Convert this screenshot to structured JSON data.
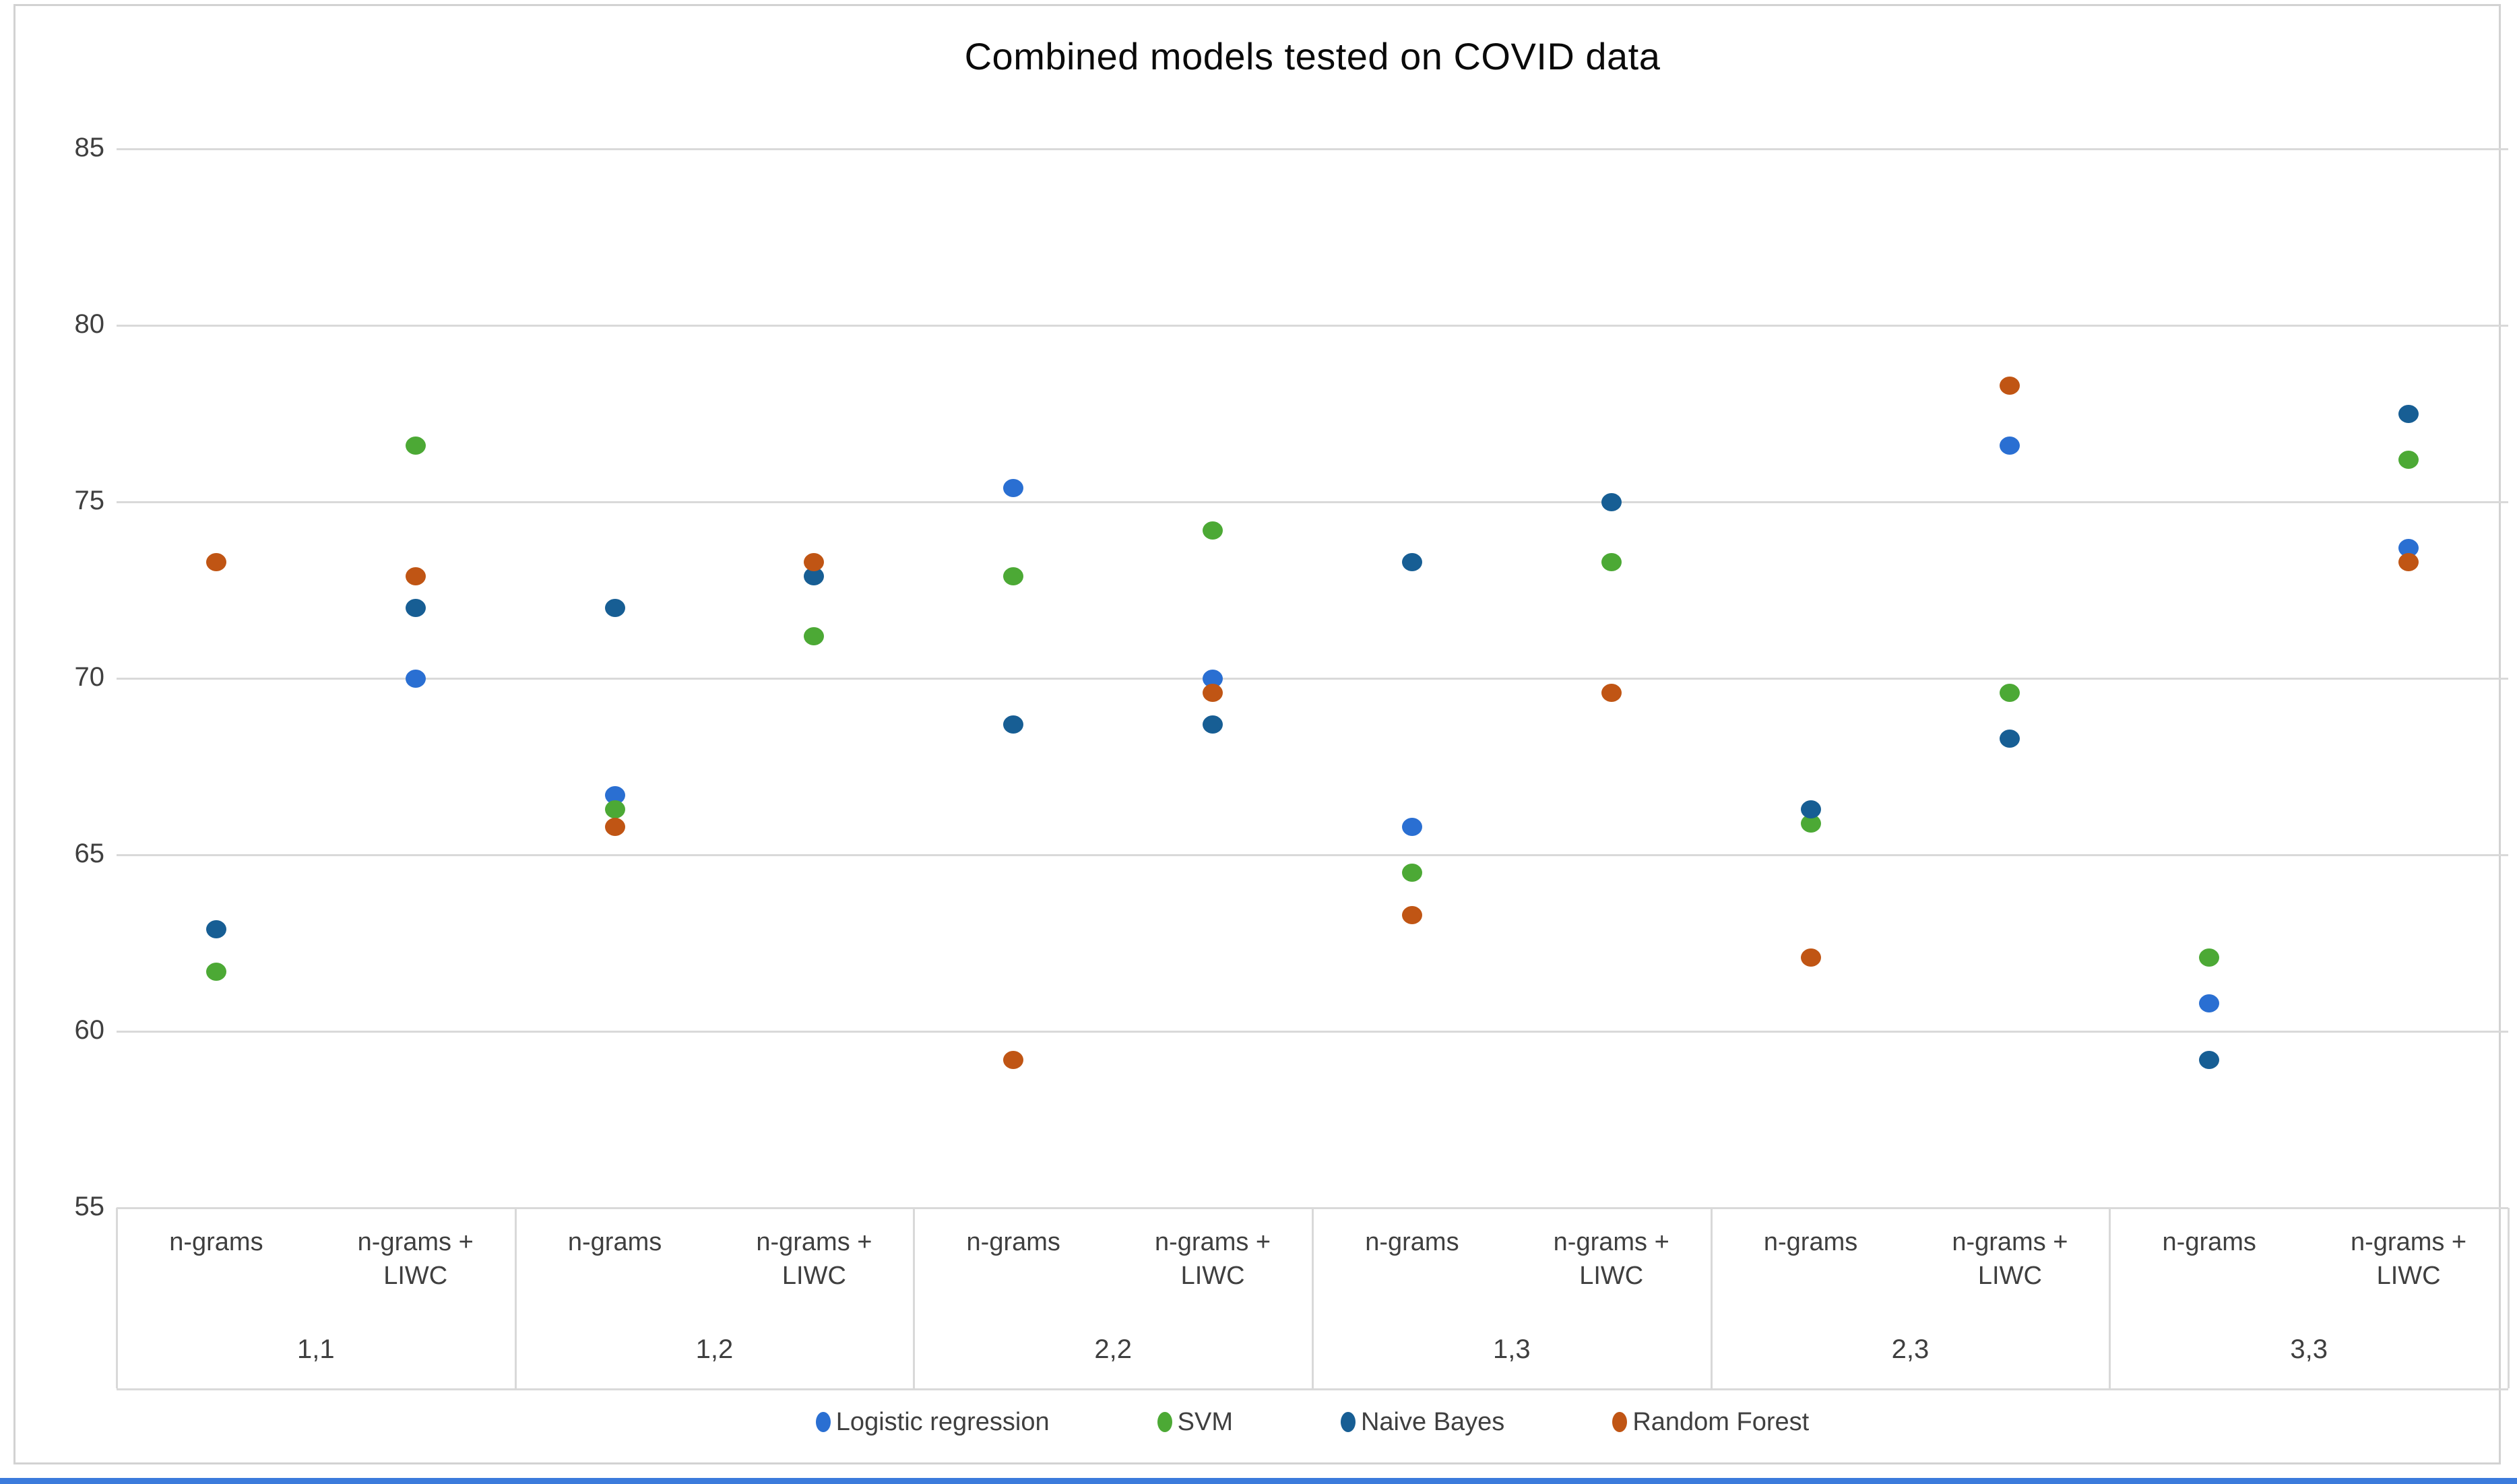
{
  "title": "Combined models tested on COVID data",
  "chart_data": {
    "type": "scatter",
    "title": "Combined models tested on COVID data",
    "y_axis": {
      "min": 55,
      "max": 85,
      "step": 5,
      "tick_labels": [
        "85",
        "80",
        "75",
        "70",
        "65",
        "60",
        "55"
      ]
    },
    "grid": true,
    "legend_position": "bottom",
    "group_labels": [
      "1,1",
      "1,2",
      "2,2",
      "1,3",
      "2,3",
      "3,3"
    ],
    "column_labels": [
      "n-grams",
      "n-grams +\nLIWC"
    ],
    "categories": [
      "1,1 n-grams",
      "1,1 n-grams + LIWC",
      "1,2 n-grams",
      "1,2 n-grams + LIWC",
      "2,2 n-grams",
      "2,2 n-grams + LIWC",
      "1,3 n-grams",
      "1,3 n-grams + LIWC",
      "2,3 n-grams",
      "2,3 n-grams + LIWC",
      "3,3 n-grams",
      "3,3 n-grams + LIWC"
    ],
    "series": [
      {
        "name": "Logistic regression",
        "color": "#2a6fd2",
        "values": [
          null,
          70.0,
          66.7,
          null,
          75.4,
          70.0,
          65.8,
          null,
          null,
          76.6,
          60.8,
          73.7
        ]
      },
      {
        "name": "SVM",
        "color": "#4ca935",
        "values": [
          61.7,
          76.6,
          66.3,
          71.2,
          72.9,
          74.2,
          64.5,
          73.3,
          65.9,
          69.6,
          62.1,
          76.2
        ]
      },
      {
        "name": "Naive Bayes",
        "color": "#175e94",
        "values": [
          62.9,
          72.0,
          72.0,
          72.9,
          68.7,
          68.7,
          73.3,
          75.0,
          66.3,
          68.3,
          59.2,
          77.5
        ]
      },
      {
        "name": "Random Forest",
        "color": "#c05514",
        "values": [
          73.3,
          72.9,
          65.8,
          73.3,
          59.2,
          69.6,
          63.3,
          69.6,
          62.1,
          78.3,
          null,
          73.3
        ]
      }
    ]
  }
}
